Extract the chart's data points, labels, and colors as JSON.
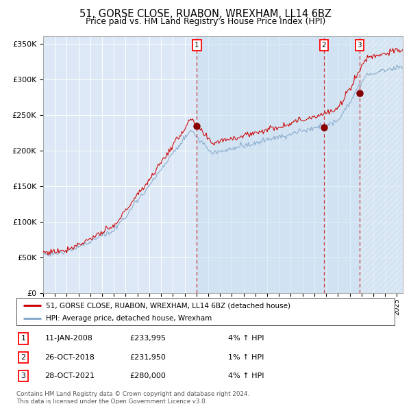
{
  "title1": "51, GORSE CLOSE, RUABON, WREXHAM, LL14 6BZ",
  "title2": "Price paid vs. HM Land Registry's House Price Index (HPI)",
  "legend_line1": "51, GORSE CLOSE, RUABON, WREXHAM, LL14 6BZ (detached house)",
  "legend_line2": "HPI: Average price, detached house, Wrexham",
  "transactions": [
    {
      "num": 1,
      "date": "11-JAN-2008",
      "price": 233995,
      "pct": "4%",
      "dir": "↑"
    },
    {
      "num": 2,
      "date": "26-OCT-2018",
      "price": 231950,
      "pct": "1%",
      "dir": "↑"
    },
    {
      "num": 3,
      "date": "28-OCT-2021",
      "price": 280000,
      "pct": "4%",
      "dir": "↑"
    }
  ],
  "transaction_dates_decimal": [
    2008.03,
    2018.82,
    2021.83
  ],
  "trans_prices": [
    233995,
    231950,
    280000
  ],
  "ylabel_ticks": [
    "£0",
    "£50K",
    "£100K",
    "£150K",
    "£200K",
    "£250K",
    "£300K",
    "£350K"
  ],
  "ylabel_values": [
    0,
    50000,
    100000,
    150000,
    200000,
    250000,
    300000,
    350000
  ],
  "xmin": 1995.0,
  "xmax": 2025.5,
  "ymin": 0,
  "ymax": 360000,
  "plot_bg": "#dce8f5",
  "line_color_red": "#cc0000",
  "line_color_blue": "#88aacc",
  "marker_color": "#880000",
  "vline_color": "#cc3333",
  "grid_color": "#ffffff",
  "footer_text": "Contains HM Land Registry data © Crown copyright and database right 2024.\nThis data is licensed under the Open Government Licence v3.0."
}
